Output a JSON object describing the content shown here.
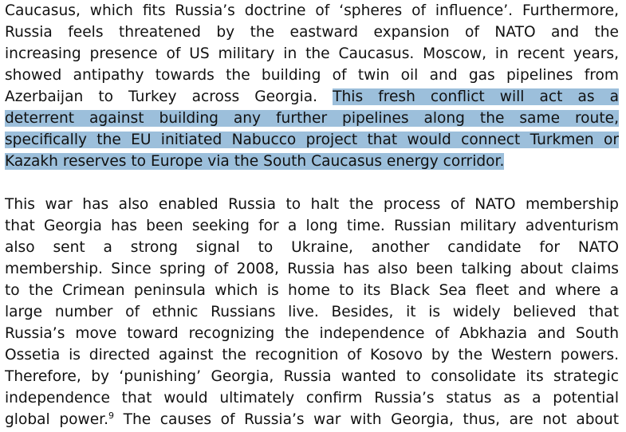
{
  "paragraph1": {
    "lines": [
      "Caucasus, which fits Russia’s doctrine of ‘spheres of influence’. Furthermore,",
      "Russia feels threatened by the eastward expansion of NATO and the",
      "increasing presence of US military in the Caucasus. Moscow, in recent years,",
      "showed antipathy towards the building of twin oil and gas pipelines from"
    ],
    "line5_plain": "Azerbaijan to Turkey across Georgia. ",
    "line5_highlight": "This fresh conflict will act as a",
    "highlighted_lines": [
      "deterrent against building any further pipelines along the same route,",
      "specifically the EU initiated Nabucco project that would connect Turkmen or",
      "Kazakh reserves to Europe via the South Caucasus energy corridor."
    ]
  },
  "paragraph2": {
    "lines": [
      "This war has also enabled Russia to halt the process of NATO membership",
      "that Georgia has been seeking for a long time. Russian military adventurism",
      "also sent a strong signal to Ukraine, another candidate for NATO",
      "membership. Since spring of 2008, Russia has also been talking about claims",
      "to the Crimean peninsula which is home to its Black Sea fleet and where a",
      "large number of ethnic Russians live. Besides, it is widely believed that",
      "Russia’s move toward recognizing the independence of Abkhazia and South",
      "Ossetia is directed against the recognition of Kosovo by the Western powers.",
      "Therefore, by ‘punishing’ Georgia, Russia wanted to consolidate its strategic",
      "independence that would ultimately confirm Russia’s status as a potential"
    ],
    "last_line_before": "global power.",
    "footnote": "9",
    "last_line_after": " The causes of Russia’s war with Georgia, thus, are not about"
  },
  "colors": {
    "highlight": "#9cbfdb",
    "text": "#111111"
  }
}
